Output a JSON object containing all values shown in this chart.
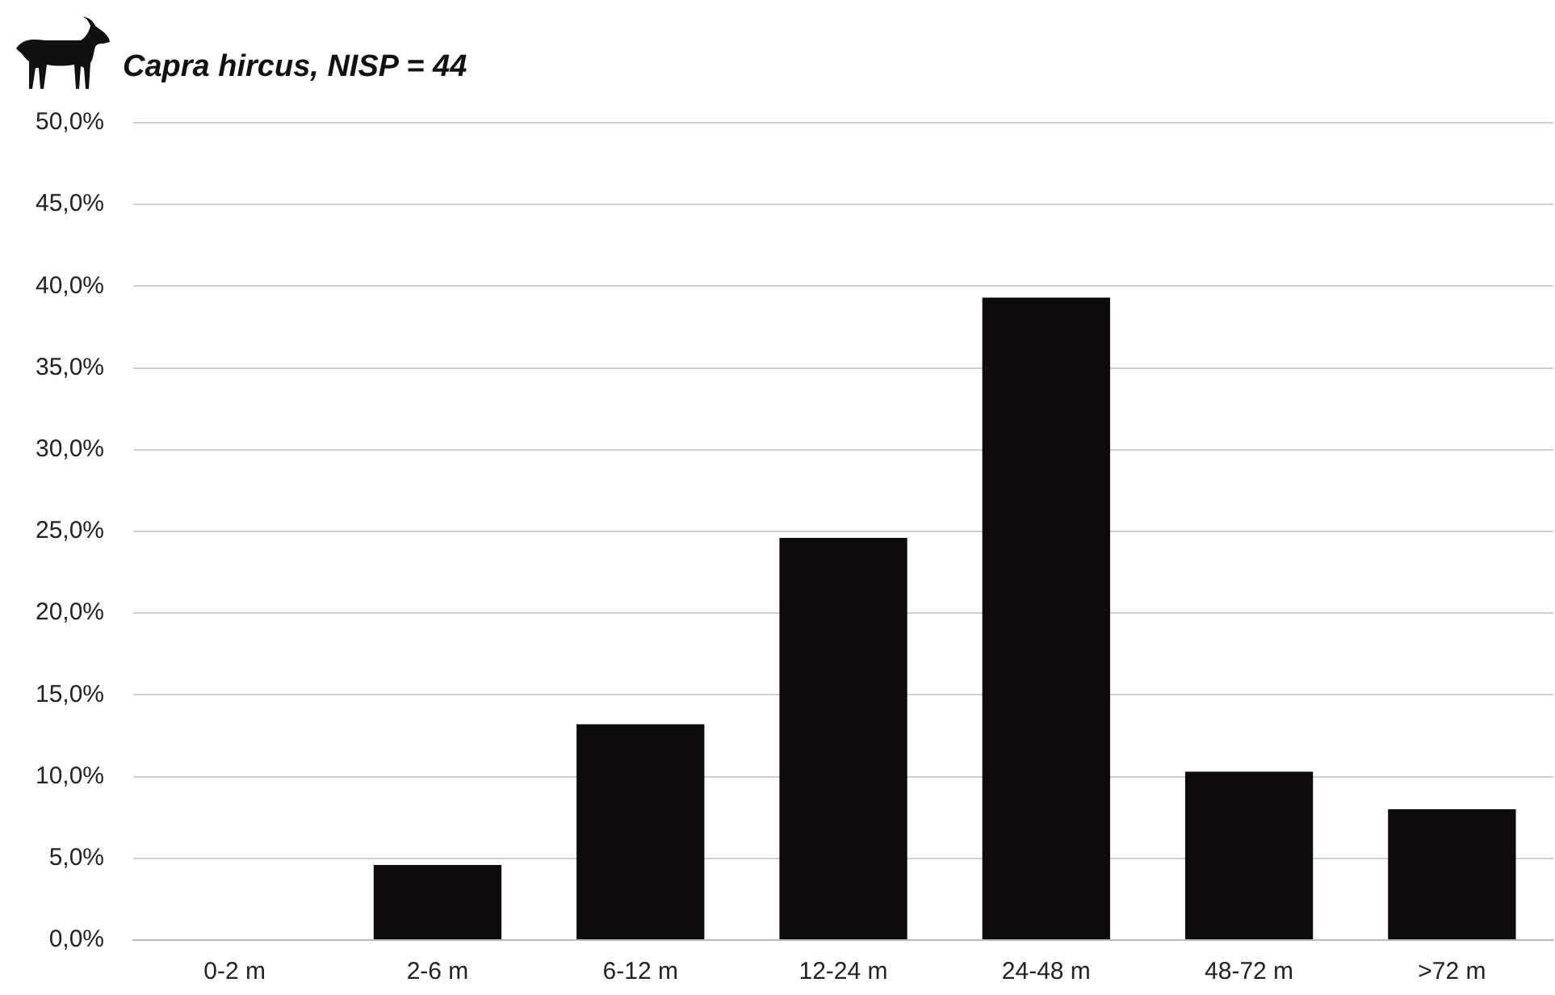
{
  "chart_data": {
    "type": "bar",
    "title": "Capra hircus, NISP = 44",
    "categories": [
      "0-2 m",
      "2-6 m",
      "6-12 m",
      "12-24 m",
      "24-48 m",
      "48-72 m",
      ">72 m"
    ],
    "values": [
      0,
      4.6,
      13.2,
      24.6,
      39.3,
      10.3,
      8.0
    ],
    "color": "#0d0b0c",
    "ylim": [
      0,
      50
    ],
    "yticks": [
      {
        "value": 0,
        "label": "0,0%"
      },
      {
        "value": 5,
        "label": "5,0%"
      },
      {
        "value": 10,
        "label": "10,0%"
      },
      {
        "value": 15,
        "label": "15,0%"
      },
      {
        "value": 20,
        "label": "20,0%"
      },
      {
        "value": 25,
        "label": "25,0%"
      },
      {
        "value": 30,
        "label": "30,0%"
      },
      {
        "value": 35,
        "label": "35,0%"
      },
      {
        "value": 40,
        "label": "40,0%"
      },
      {
        "value": 45,
        "label": "45,0%"
      },
      {
        "value": 50,
        "label": "50,0%"
      }
    ],
    "grid": "y"
  }
}
